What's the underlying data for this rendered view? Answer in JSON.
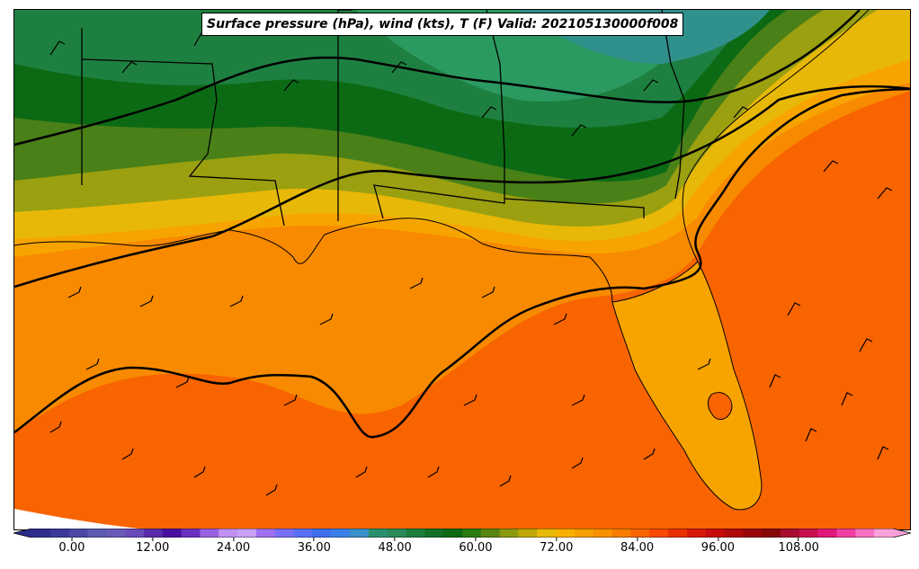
{
  "title": "Surface pressure (hPa), wind (kts), T (F) Valid: 202105130000f008",
  "colorbar": {
    "ticks": [
      "0.00",
      "12.00",
      "24.00",
      "36.00",
      "48.00",
      "60.00",
      "72.00",
      "84.00",
      "96.00",
      "108.00"
    ],
    "tick_values": [
      0,
      12,
      24,
      36,
      48,
      60,
      72,
      84,
      96,
      108
    ],
    "min": -6,
    "max": 122,
    "step": 3,
    "colors": [
      "#2c2c8c",
      "#3a3a98",
      "#4a4aa6",
      "#5a5ab0",
      "#6a5ab8",
      "#6a4ab8",
      "#5a2aa8",
      "#4a10a0",
      "#6a30c0",
      "#9a60e0",
      "#c090f0",
      "#c8a0f8",
      "#a070f0",
      "#7a70f8",
      "#5a70f8",
      "#4070f0",
      "#3a80e8",
      "#3a90c8",
      "#2a9070",
      "#2a8a5a",
      "#1e7e3c",
      "#147028",
      "#0c6a14",
      "#2a7a10",
      "#5a8410",
      "#8a9a10",
      "#c0a808",
      "#e8b808",
      "#f8b000",
      "#f8a000",
      "#f89000",
      "#f87c00",
      "#f86400",
      "#f84a00",
      "#e83000",
      "#d81808",
      "#c80c0c",
      "#b00a0a",
      "#980808",
      "#880808",
      "#a80c30",
      "#c81050",
      "#e01878",
      "#f040a0",
      "#f870c0",
      "#f8a0d8"
    ]
  },
  "map": {
    "contour_levels_F": [
      48,
      54,
      60,
      66,
      72,
      78,
      84
    ],
    "pressure_isobars": 4,
    "wind_barbs": "kts"
  }
}
